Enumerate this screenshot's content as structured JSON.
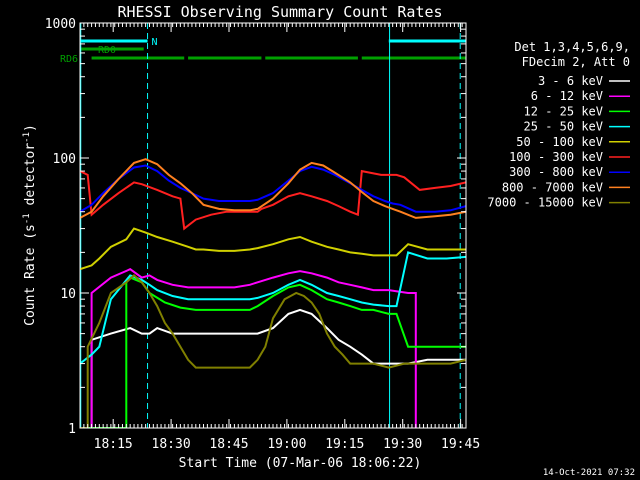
{
  "chart_data": {
    "type": "line",
    "title": "RHESSI Observing Summary Count Rates",
    "xlabel": "Start Time (07-Mar-06 18:06:22)",
    "ylabel": "Count Rate (s",
    "ylabel_sup1": "-1",
    "ylabel_mid": " detector",
    "ylabel_sup2": "-1",
    "ylabel_end": ")",
    "y_scale": "log",
    "ylim": [
      1,
      1000
    ],
    "xlim_minutes": [
      0,
      100
    ],
    "x_ticks": [
      {
        "label": "18:15",
        "minute": 8.6
      },
      {
        "label": "18:30",
        "minute": 23.6
      },
      {
        "label": "18:45",
        "minute": 38.6
      },
      {
        "label": "19:00",
        "minute": 53.6
      },
      {
        "label": "19:15",
        "minute": 68.6
      },
      {
        "label": "19:30",
        "minute": 83.6
      },
      {
        "label": "19:45",
        "minute": 98.6
      }
    ],
    "y_ticks": [
      {
        "label": "1",
        "value": 1
      },
      {
        "label": "10",
        "value": 10
      },
      {
        "label": "100",
        "value": 100
      },
      {
        "label": "1000",
        "value": 1000
      }
    ],
    "legend": {
      "placement": "right",
      "header": [
        "Det 1,3,4,5,6,9,",
        "FDecim 2, Att 0"
      ]
    },
    "footer_date": "14-Oct-2021 07:32",
    "flag_lines": [
      {
        "label": "N",
        "color": "#00ffff",
        "segments": [
          [
            0,
            17.5
          ],
          [
            80,
            100
          ]
        ],
        "level": 1
      },
      {
        "label": "RD0",
        "color": "#00a000",
        "segments": [
          [
            0,
            16.5
          ]
        ],
        "level": 2
      },
      {
        "label": "RD6",
        "color": "#00a000",
        "segments": [
          [
            3,
            27
          ],
          [
            28,
            47
          ],
          [
            48,
            72
          ],
          [
            73,
            100
          ]
        ],
        "level": 3
      }
    ],
    "vlines": [
      {
        "minute": 0.2,
        "style": "solid",
        "color": "#00ffff"
      },
      {
        "minute": 17.5,
        "style": "dashed",
        "color": "#00ffff"
      },
      {
        "minute": 80.2,
        "style": "solid",
        "color": "#00ffff"
      },
      {
        "minute": 98.5,
        "style": "dashed",
        "color": "#00ffff"
      }
    ],
    "series": [
      {
        "name": "3 - 6 keV",
        "color": "#ffffff",
        "points": [
          [
            0,
            1
          ],
          [
            3,
            1
          ],
          [
            3,
            4.5
          ],
          [
            8,
            5
          ],
          [
            13,
            5.5
          ],
          [
            16,
            5
          ],
          [
            18,
            5
          ],
          [
            20,
            5.5
          ],
          [
            24,
            5
          ],
          [
            28,
            5
          ],
          [
            32,
            5
          ],
          [
            36,
            5
          ],
          [
            40,
            5
          ],
          [
            44,
            5
          ],
          [
            46,
            5
          ],
          [
            50,
            5.5
          ],
          [
            54,
            7
          ],
          [
            57,
            7.5
          ],
          [
            60,
            7
          ],
          [
            64,
            5.5
          ],
          [
            67,
            4.5
          ],
          [
            70,
            4
          ],
          [
            73,
            3.5
          ],
          [
            76,
            3
          ],
          [
            80,
            3
          ],
          [
            82,
            3
          ],
          [
            85,
            3
          ],
          [
            90,
            3.2
          ],
          [
            95,
            3.2
          ],
          [
            100,
            3.2
          ]
        ]
      },
      {
        "name": "6 - 12 keV",
        "color": "#ff00ff",
        "points": [
          [
            0,
            1
          ],
          [
            3,
            1
          ],
          [
            3,
            10
          ],
          [
            8,
            13
          ],
          [
            13,
            15
          ],
          [
            16,
            13
          ],
          [
            18,
            13.5
          ],
          [
            20,
            12.5
          ],
          [
            24,
            11.5
          ],
          [
            28,
            11
          ],
          [
            32,
            11
          ],
          [
            36,
            11
          ],
          [
            40,
            11
          ],
          [
            44,
            11.5
          ],
          [
            46,
            12
          ],
          [
            50,
            13
          ],
          [
            54,
            14
          ],
          [
            57,
            14.5
          ],
          [
            60,
            14
          ],
          [
            64,
            13
          ],
          [
            67,
            12
          ],
          [
            70,
            11.5
          ],
          [
            73,
            11
          ],
          [
            76,
            10.5
          ],
          [
            80,
            10.5
          ],
          [
            85,
            10
          ],
          [
            87,
            10
          ],
          [
            87,
            1
          ]
        ]
      },
      {
        "name": "12 - 25 keV",
        "color": "#00ff00",
        "points": [
          [
            0,
            1
          ],
          [
            12,
            1
          ],
          [
            12,
            12
          ],
          [
            13,
            13
          ],
          [
            16,
            12
          ],
          [
            18,
            10
          ],
          [
            22,
            8.5
          ],
          [
            26,
            7.8
          ],
          [
            30,
            7.5
          ],
          [
            36,
            7.5
          ],
          [
            40,
            7.5
          ],
          [
            44,
            7.5
          ],
          [
            46,
            8
          ],
          [
            50,
            9.5
          ],
          [
            54,
            11
          ],
          [
            57,
            11.5
          ],
          [
            60,
            10.5
          ],
          [
            64,
            9
          ],
          [
            67,
            8.5
          ],
          [
            70,
            8
          ],
          [
            73,
            7.5
          ],
          [
            76,
            7.5
          ],
          [
            80,
            7
          ],
          [
            82,
            7
          ],
          [
            85,
            4
          ],
          [
            90,
            4
          ],
          [
            95,
            4
          ],
          [
            100,
            4
          ]
        ]
      },
      {
        "name": "25 - 50 keV",
        "color": "#00ffff",
        "points": [
          [
            0,
            3
          ],
          [
            3,
            3.5
          ],
          [
            5,
            4
          ],
          [
            8,
            9
          ],
          [
            13,
            13.5
          ],
          [
            16,
            12.5
          ],
          [
            18,
            11.5
          ],
          [
            20,
            10.5
          ],
          [
            24,
            9.5
          ],
          [
            28,
            9
          ],
          [
            32,
            9
          ],
          [
            36,
            9
          ],
          [
            40,
            9
          ],
          [
            44,
            9
          ],
          [
            46,
            9.2
          ],
          [
            50,
            10
          ],
          [
            54,
            11.5
          ],
          [
            57,
            12.5
          ],
          [
            60,
            11.5
          ],
          [
            64,
            10
          ],
          [
            67,
            9.5
          ],
          [
            70,
            9
          ],
          [
            73,
            8.5
          ],
          [
            76,
            8.2
          ],
          [
            80,
            8
          ],
          [
            82,
            8
          ],
          [
            85,
            20
          ],
          [
            90,
            18
          ],
          [
            95,
            18
          ],
          [
            100,
            18.5
          ]
        ]
      },
      {
        "name": "50 - 100 keV",
        "color": "#d0d000",
        "points": [
          [
            0,
            15
          ],
          [
            3,
            16
          ],
          [
            5,
            18
          ],
          [
            8,
            22
          ],
          [
            12,
            25
          ],
          [
            14,
            30
          ],
          [
            17,
            28
          ],
          [
            20,
            26
          ],
          [
            24,
            24
          ],
          [
            28,
            22
          ],
          [
            30,
            21
          ],
          [
            32,
            21
          ],
          [
            36,
            20.5
          ],
          [
            40,
            20.5
          ],
          [
            44,
            21
          ],
          [
            46,
            21.5
          ],
          [
            50,
            23
          ],
          [
            54,
            25
          ],
          [
            57,
            26
          ],
          [
            60,
            24
          ],
          [
            64,
            22
          ],
          [
            67,
            21
          ],
          [
            70,
            20
          ],
          [
            73,
            19.5
          ],
          [
            76,
            19
          ],
          [
            80,
            19
          ],
          [
            82,
            19
          ],
          [
            85,
            23
          ],
          [
            90,
            21
          ],
          [
            95,
            21
          ],
          [
            100,
            21
          ]
        ]
      },
      {
        "name": "100 - 300 keV",
        "color": "#ff2020",
        "points": [
          [
            0,
            80
          ],
          [
            2,
            75
          ],
          [
            3,
            38
          ],
          [
            6,
            45
          ],
          [
            10,
            55
          ],
          [
            14,
            66
          ],
          [
            16,
            64
          ],
          [
            20,
            58
          ],
          [
            24,
            52
          ],
          [
            26,
            50
          ],
          [
            27,
            30
          ],
          [
            30,
            35
          ],
          [
            34,
            38
          ],
          [
            38,
            40
          ],
          [
            42,
            40
          ],
          [
            46,
            40
          ],
          [
            47,
            42
          ],
          [
            50,
            45
          ],
          [
            54,
            52
          ],
          [
            57,
            55
          ],
          [
            60,
            52
          ],
          [
            64,
            48
          ],
          [
            67,
            44
          ],
          [
            70,
            40
          ],
          [
            72,
            38
          ],
          [
            73,
            80
          ],
          [
            78,
            75
          ],
          [
            82,
            75
          ],
          [
            84,
            72
          ],
          [
            88,
            58
          ],
          [
            92,
            60
          ],
          [
            96,
            62
          ],
          [
            100,
            66
          ]
        ]
      },
      {
        "name": "300 - 800 keV",
        "color": "#0000ff",
        "points": [
          [
            0,
            40
          ],
          [
            3,
            45
          ],
          [
            6,
            55
          ],
          [
            10,
            70
          ],
          [
            14,
            85
          ],
          [
            17,
            88
          ],
          [
            20,
            80
          ],
          [
            23,
            68
          ],
          [
            26,
            60
          ],
          [
            29,
            55
          ],
          [
            32,
            50
          ],
          [
            36,
            48
          ],
          [
            40,
            48
          ],
          [
            44,
            48
          ],
          [
            46,
            49
          ],
          [
            50,
            55
          ],
          [
            54,
            68
          ],
          [
            57,
            80
          ],
          [
            60,
            86
          ],
          [
            63,
            82
          ],
          [
            66,
            75
          ],
          [
            70,
            65
          ],
          [
            73,
            58
          ],
          [
            76,
            52
          ],
          [
            79,
            48
          ],
          [
            81,
            46
          ],
          [
            83,
            45
          ],
          [
            87,
            40
          ],
          [
            92,
            40
          ],
          [
            96,
            41
          ],
          [
            100,
            44
          ]
        ]
      },
      {
        "name": "800 - 7000 keV",
        "color": "#ff8020",
        "points": [
          [
            0,
            36
          ],
          [
            3,
            40
          ],
          [
            6,
            52
          ],
          [
            10,
            70
          ],
          [
            14,
            92
          ],
          [
            17,
            98
          ],
          [
            20,
            90
          ],
          [
            23,
            75
          ],
          [
            26,
            65
          ],
          [
            29,
            55
          ],
          [
            32,
            45
          ],
          [
            36,
            42
          ],
          [
            40,
            41
          ],
          [
            44,
            41
          ],
          [
            46,
            42
          ],
          [
            50,
            50
          ],
          [
            54,
            65
          ],
          [
            57,
            82
          ],
          [
            60,
            92
          ],
          [
            63,
            88
          ],
          [
            66,
            78
          ],
          [
            70,
            66
          ],
          [
            73,
            56
          ],
          [
            76,
            48
          ],
          [
            79,
            44
          ],
          [
            81,
            42
          ],
          [
            83,
            40
          ],
          [
            87,
            36
          ],
          [
            92,
            37
          ],
          [
            96,
            38
          ],
          [
            100,
            40
          ]
        ]
      },
      {
        "name": "7000 - 15000 keV",
        "color": "#808000",
        "points": [
          [
            0,
            1
          ],
          [
            2,
            1
          ],
          [
            2,
            4
          ],
          [
            5,
            6
          ],
          [
            8,
            10
          ],
          [
            12,
            12
          ],
          [
            14,
            13.5
          ],
          [
            16,
            12
          ],
          [
            18,
            10
          ],
          [
            20,
            8
          ],
          [
            22,
            6
          ],
          [
            24,
            5
          ],
          [
            26,
            4
          ],
          [
            28,
            3.2
          ],
          [
            30,
            2.8
          ],
          [
            34,
            2.8
          ],
          [
            38,
            2.8
          ],
          [
            42,
            2.8
          ],
          [
            44,
            2.8
          ],
          [
            46,
            3.2
          ],
          [
            48,
            4
          ],
          [
            50,
            6.5
          ],
          [
            53,
            9
          ],
          [
            56,
            10
          ],
          [
            58,
            9.5
          ],
          [
            60,
            8.5
          ],
          [
            62,
            7
          ],
          [
            64,
            5
          ],
          [
            66,
            4
          ],
          [
            68,
            3.5
          ],
          [
            70,
            3
          ],
          [
            72,
            3
          ],
          [
            74,
            3
          ],
          [
            76,
            3
          ],
          [
            80,
            2.8
          ],
          [
            84,
            3
          ],
          [
            88,
            3
          ],
          [
            92,
            3
          ],
          [
            96,
            3
          ],
          [
            100,
            3.2
          ]
        ]
      }
    ]
  }
}
